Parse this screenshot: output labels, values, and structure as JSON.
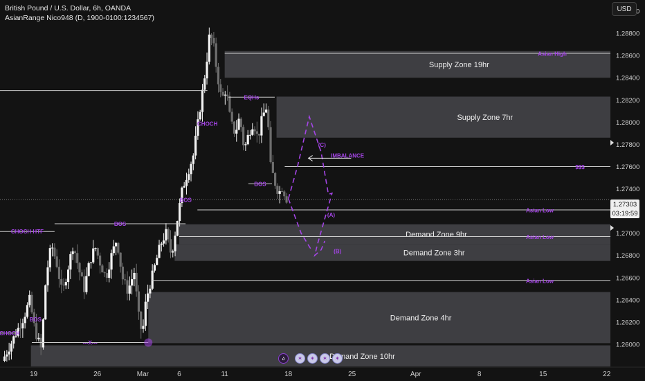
{
  "header": {
    "title": "British Pound / U.S. Dollar, 6h, OANDA",
    "indicator": "AsianRange Nico948 (D, 1900-0100:1234567)",
    "currency": "USD"
  },
  "current_price": {
    "price": "1.27303",
    "countdown": "03:19:59"
  },
  "event_icons": [
    {
      "name": "logo-icon",
      "glyph": "ა"
    },
    {
      "name": "flag-icon-1",
      "glyph": "✶"
    },
    {
      "name": "flag-icon-2",
      "glyph": "✶"
    },
    {
      "name": "flag-icon-3",
      "glyph": "✶"
    },
    {
      "name": "flag-icon-4",
      "glyph": "✶"
    }
  ],
  "chart_data": {
    "type": "candlestick",
    "title": "British Pound / U.S. Dollar, 6h, OANDA",
    "ylim": [
      1.258,
      1.291
    ],
    "y_ticks": [
      1.26,
      1.262,
      1.264,
      1.266,
      1.268,
      1.27,
      1.272,
      1.274,
      1.276,
      1.278,
      1.28,
      1.282,
      1.284,
      1.286,
      1.288,
      1.29
    ],
    "y_tick_labels": [
      "1.26000",
      "1.26200",
      "1.26400",
      "1.26600",
      "1.26800",
      "1.27000",
      "1.27200",
      "1.27400",
      "1.27600",
      "1.27800",
      "1.28000",
      "1.28200",
      "1.28400",
      "1.28600",
      "1.28800",
      "1.29000"
    ],
    "x_ticks": [
      {
        "day": 19,
        "label": "19"
      },
      {
        "day": 26,
        "label": "26"
      },
      {
        "day": 31,
        "label": "Mar"
      },
      {
        "day": 35,
        "label": "6"
      },
      {
        "day": 40,
        "label": "11"
      },
      {
        "day": 47,
        "label": "18"
      },
      {
        "day": 54,
        "label": "25"
      },
      {
        "day": 61,
        "label": "Apr"
      },
      {
        "day": 68,
        "label": "8"
      },
      {
        "day": 75,
        "label": "15"
      },
      {
        "day": 82,
        "label": "22"
      }
    ],
    "x_range_days": [
      15.3,
      82.4
    ],
    "anchors": [
      [
        15.8,
        1.2585
      ],
      [
        16.6,
        1.2598
      ],
      [
        17.3,
        1.261
      ],
      [
        18.2,
        1.2625
      ],
      [
        18.8,
        1.264
      ],
      [
        19.4,
        1.2612
      ],
      [
        20.1,
        1.2595
      ],
      [
        20.6,
        1.266
      ],
      [
        21.2,
        1.269
      ],
      [
        21.8,
        1.2672
      ],
      [
        22.4,
        1.2645
      ],
      [
        23.0,
        1.2668
      ],
      [
        23.6,
        1.269
      ],
      [
        24.2,
        1.2668
      ],
      [
        24.8,
        1.265
      ],
      [
        25.4,
        1.2674
      ],
      [
        26.0,
        1.2688
      ],
      [
        26.6,
        1.2672
      ],
      [
        27.2,
        1.266
      ],
      [
        27.8,
        1.268
      ],
      [
        28.4,
        1.2695
      ],
      [
        29.0,
        1.266
      ],
      [
        29.6,
        1.2648
      ],
      [
        30.3,
        1.2665
      ],
      [
        30.8,
        1.2625
      ],
      [
        31.2,
        1.2608
      ],
      [
        31.6,
        1.264
      ],
      [
        32.4,
        1.2665
      ],
      [
        33.2,
        1.269
      ],
      [
        33.8,
        1.27
      ],
      [
        34.4,
        1.268
      ],
      [
        35.0,
        1.271
      ],
      [
        35.6,
        1.274
      ],
      [
        36.2,
        1.2755
      ],
      [
        36.8,
        1.277
      ],
      [
        37.5,
        1.281
      ],
      [
        38.2,
        1.285
      ],
      [
        38.6,
        1.288
      ],
      [
        39.0,
        1.287
      ],
      [
        39.4,
        1.2845
      ],
      [
        39.9,
        1.282
      ],
      [
        40.4,
        1.283
      ],
      [
        40.9,
        1.28
      ],
      [
        41.4,
        1.279
      ],
      [
        41.9,
        1.2805
      ],
      [
        42.4,
        1.2775
      ],
      [
        42.9,
        1.279
      ],
      [
        43.4,
        1.28
      ],
      [
        43.9,
        1.2785
      ],
      [
        44.4,
        1.2805
      ],
      [
        44.9,
        1.2815
      ],
      [
        45.3,
        1.276
      ],
      [
        45.8,
        1.2745
      ],
      [
        46.2,
        1.2736
      ],
      [
        46.6,
        1.2742
      ],
      [
        47.0,
        1.2731
      ]
    ],
    "zones": [
      {
        "label": "Supply Zone 19hr",
        "y_top": 1.2864,
        "y_bottom": 1.284,
        "x_start_day": 40.0
      },
      {
        "label": "Supply Zone 7hr",
        "y_top": 1.2823,
        "y_bottom": 1.2786,
        "x_start_day": 45.7
      },
      {
        "label": "Demand Zone 9hr",
        "y_top": 1.2708,
        "y_bottom": 1.269,
        "x_start_day": 35.0
      },
      {
        "label": "Demand Zone 3hr",
        "y_top": 1.269,
        "y_bottom": 1.2675,
        "x_start_day": 34.5
      },
      {
        "label": "Demand Zone 4hr",
        "y_top": 1.2647,
        "y_bottom": 1.2601,
        "x_start_day": 31.6
      },
      {
        "label": "Demand Zone 10hr",
        "y_top": 1.2599,
        "y_bottom": 1.258,
        "x_start_day": 18.7
      }
    ],
    "level_lines": [
      {
        "y": 1.2862,
        "x_start_day": 40.0,
        "label": "Asian High"
      },
      {
        "y": 1.276,
        "x_start_day": 46.6,
        "label": "$$$"
      },
      {
        "y": 1.2721,
        "x_start_day": 37.0,
        "label": "Asian Low"
      },
      {
        "y": 1.2697,
        "x_start_day": 35.0,
        "label": "Asian Low"
      },
      {
        "y": 1.26575,
        "x_start_day": 32.0,
        "label": "Asian Low"
      },
      {
        "y": 1.28285,
        "x_start_day": 15.3,
        "x_end_day": 38.1,
        "label": ""
      },
      {
        "y": 1.27303,
        "x_start_day": 15.3,
        "x_end_day": 82.4,
        "dashed": true,
        "label": ""
      }
    ],
    "structure_labels": [
      {
        "text": "CHOCH HTF",
        "y": 1.27015,
        "x_start_day": 15.3,
        "x_end_day": 21.3
      },
      {
        "text": "BOS",
        "y": 1.27085,
        "x_start_day": 21.3,
        "x_end_day": 35.7
      },
      {
        "text": "BOS",
        "y": 1.26225,
        "x_start_day": 19.2,
        "x_end_day": 19.2
      },
      {
        "text": "CHOCH",
        "y": 1.261,
        "x_start_day": 15.3,
        "x_end_day": 17.4
      },
      {
        "text": "---X---",
        "y": 1.26015,
        "x_start_day": 18.8,
        "x_end_day": 31.6
      },
      {
        "text": "BOS",
        "y": 1.273,
        "x_start_day": 35.7,
        "x_end_day": 35.7
      },
      {
        "text": "CHOCH",
        "y": 1.27985,
        "x_start_day": 38.1,
        "x_end_day": 38.1
      },
      {
        "text": "EQHs",
        "y": 1.28225,
        "x_start_day": 40.4,
        "x_end_day": 45.5
      },
      {
        "text": "BOS",
        "y": 1.27445,
        "x_start_day": 42.6,
        "x_end_day": 45.2
      },
      {
        "text": "IMBALANCE",
        "y": 1.277,
        "x_start_day": 53.5,
        "x_end_day": 53.5
      },
      {
        "text": "(C)",
        "y": 1.27795,
        "x_start_day": 50.7,
        "x_end_day": 50.7
      },
      {
        "text": "(A)",
        "y": 1.27165,
        "x_start_day": 51.7,
        "x_end_day": 51.7
      },
      {
        "text": "(B)",
        "y": 1.2684,
        "x_start_day": 52.4,
        "x_end_day": 52.4
      }
    ],
    "projection_path": [
      [
        47.0,
        1.2731
      ],
      [
        48.0,
        1.276
      ],
      [
        49.3,
        1.2805
      ],
      [
        50.6,
        1.2773
      ],
      [
        51.4,
        1.2735
      ],
      [
        51.8,
        1.2736
      ],
      [
        50.2,
        1.269
      ],
      [
        49.9,
        1.268
      ],
      [
        50.6,
        1.2685
      ],
      [
        51.0,
        1.2693
      ]
    ],
    "projection_path2": [
      [
        47.0,
        1.2731
      ],
      [
        48.4,
        1.27
      ],
      [
        49.6,
        1.2684
      ]
    ],
    "imbalance_arrow": {
      "y": 1.27675,
      "x_start_day": 53.9,
      "x_end_day": 49.2
    },
    "grid": false,
    "legend": "none"
  }
}
